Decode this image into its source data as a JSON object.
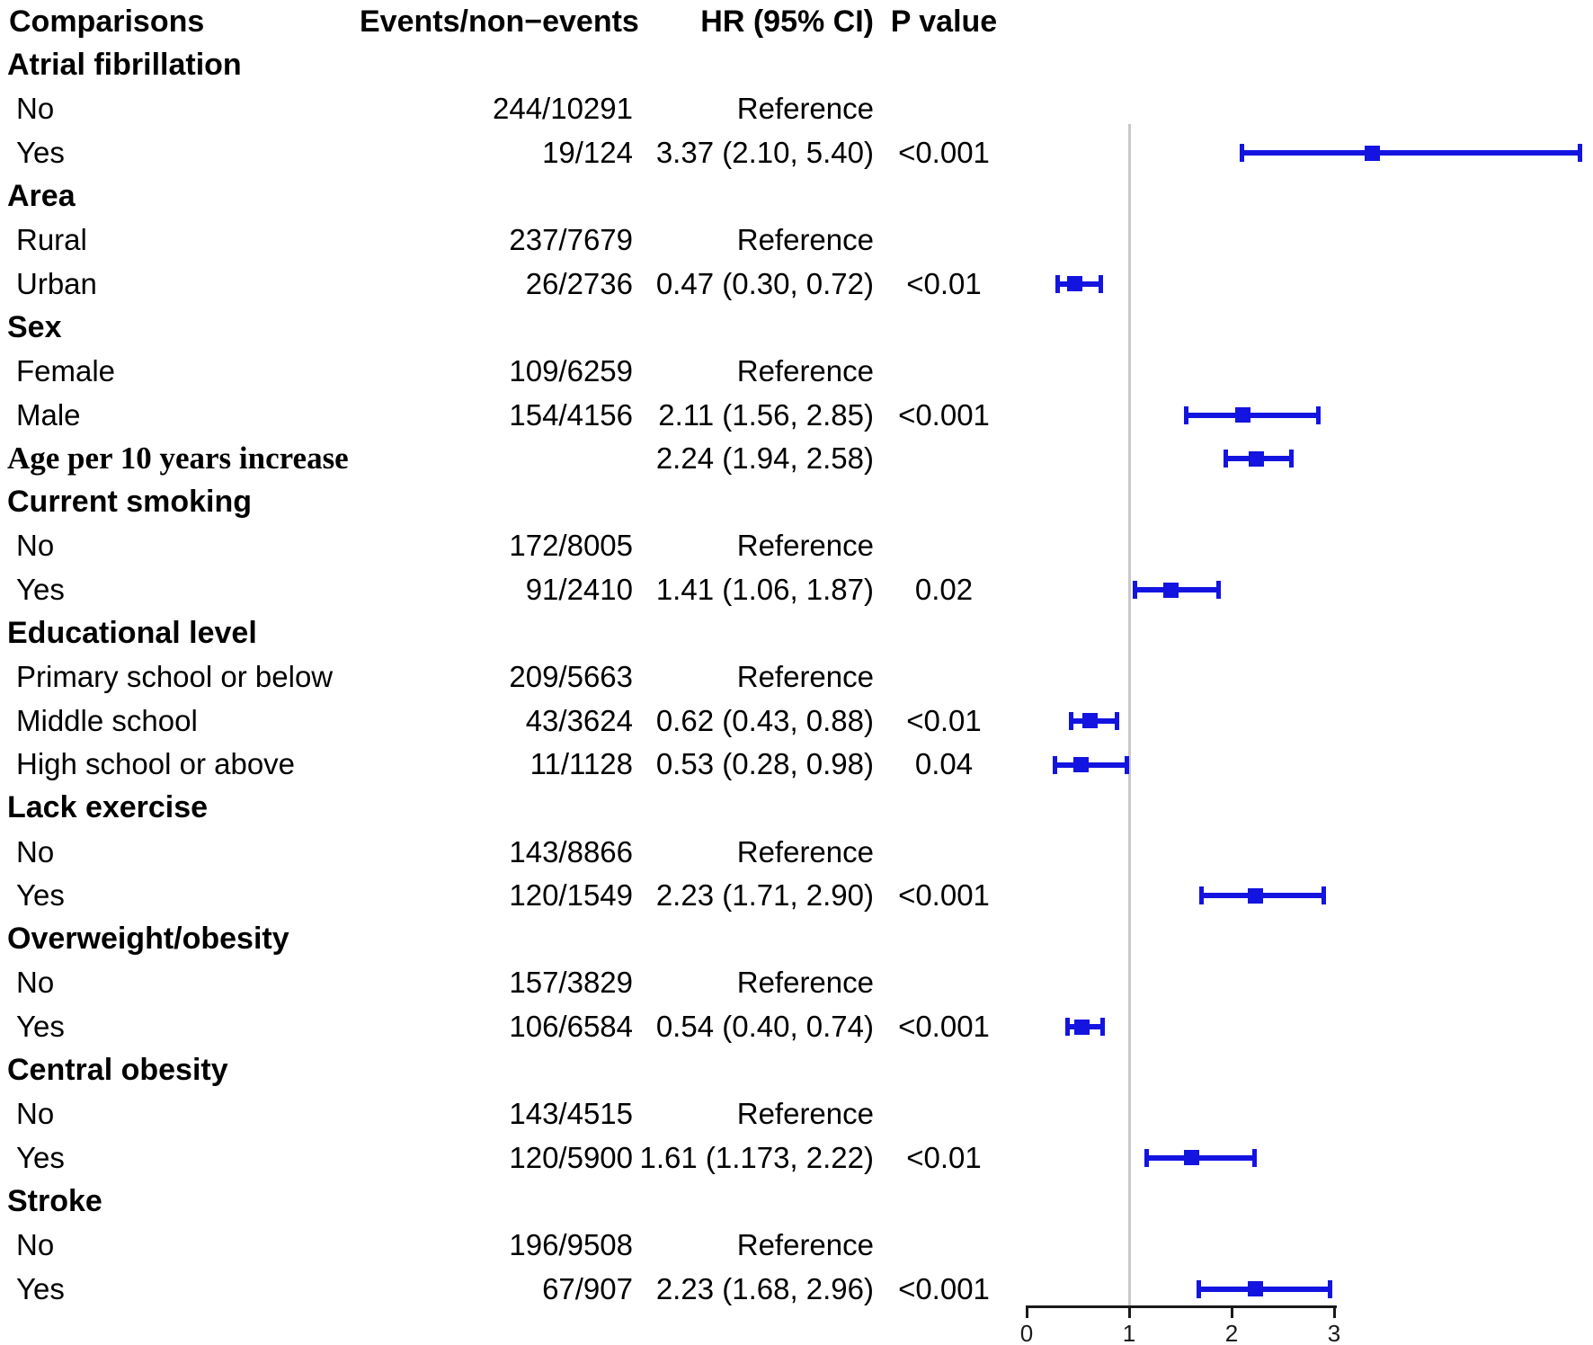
{
  "header": {
    "comparisons": "Comparisons",
    "events": "Events/non−events",
    "hr": "HR (95% CI)",
    "pvalue": "P value"
  },
  "rows": [
    {
      "kind": "group",
      "label": "Atrial fibrillation",
      "events": "",
      "hr": "",
      "p": ""
    },
    {
      "kind": "item",
      "label": "No",
      "events": "244/10291",
      "hr": "Reference",
      "p": ""
    },
    {
      "kind": "item",
      "label": "Yes",
      "events": "19/124",
      "hr": "3.37 (2.10, 5.40)",
      "p": "<0.001",
      "est": 3.37,
      "lo": 2.1,
      "hi": 5.4
    },
    {
      "kind": "group",
      "label": "Area",
      "events": "",
      "hr": "",
      "p": ""
    },
    {
      "kind": "item",
      "label": "Rural",
      "events": "237/7679",
      "hr": "Reference",
      "p": ""
    },
    {
      "kind": "item",
      "label": "Urban",
      "events": "26/2736",
      "hr": "0.47 (0.30, 0.72)",
      "p": "<0.01",
      "est": 0.47,
      "lo": 0.3,
      "hi": 0.72
    },
    {
      "kind": "group",
      "label": "Sex",
      "events": "",
      "hr": "",
      "p": ""
    },
    {
      "kind": "item",
      "label": "Female",
      "events": "109/6259",
      "hr": "Reference",
      "p": ""
    },
    {
      "kind": "item",
      "label": "Male",
      "events": "154/4156",
      "hr": "2.11 (1.56, 2.85)",
      "p": "<0.001",
      "est": 2.11,
      "lo": 1.56,
      "hi": 2.85
    },
    {
      "kind": "serif",
      "label": "Age per 10 years increase",
      "events": "",
      "hr": "2.24 (1.94, 2.58)",
      "p": "",
      "est": 2.24,
      "lo": 1.94,
      "hi": 2.58
    },
    {
      "kind": "group",
      "label": "Current smoking",
      "events": "",
      "hr": "",
      "p": ""
    },
    {
      "kind": "item",
      "label": "No",
      "events": "172/8005",
      "hr": "Reference",
      "p": ""
    },
    {
      "kind": "item",
      "label": "Yes",
      "events": "91/2410",
      "hr": "1.41 (1.06, 1.87)",
      "p": "0.02",
      "est": 1.41,
      "lo": 1.06,
      "hi": 1.87
    },
    {
      "kind": "group",
      "label": "Educational level",
      "events": "",
      "hr": "",
      "p": ""
    },
    {
      "kind": "item",
      "label": "Primary school or below",
      "events": "209/5663",
      "hr": "Reference",
      "p": ""
    },
    {
      "kind": "item",
      "label": "Middle school",
      "events": "43/3624",
      "hr": "0.62 (0.43, 0.88)",
      "p": "<0.01",
      "est": 0.62,
      "lo": 0.43,
      "hi": 0.88
    },
    {
      "kind": "item",
      "label": "High school or above",
      "events": "11/1128",
      "hr": "0.53 (0.28, 0.98)",
      "p": "0.04",
      "est": 0.53,
      "lo": 0.28,
      "hi": 0.98
    },
    {
      "kind": "group",
      "label": "Lack exercise",
      "events": "",
      "hr": "",
      "p": ""
    },
    {
      "kind": "item",
      "label": "No",
      "events": "143/8866",
      "hr": "Reference",
      "p": ""
    },
    {
      "kind": "item",
      "label": "Yes",
      "events": "120/1549",
      "hr": "2.23 (1.71, 2.90)",
      "p": "<0.001",
      "est": 2.23,
      "lo": 1.71,
      "hi": 2.9
    },
    {
      "kind": "group",
      "label": "Overweight/obesity",
      "events": "",
      "hr": "",
      "p": ""
    },
    {
      "kind": "item",
      "label": "No",
      "events": "157/3829",
      "hr": "Reference",
      "p": ""
    },
    {
      "kind": "item",
      "label": "Yes",
      "events": "106/6584",
      "hr": "0.54 (0.40, 0.74)",
      "p": "<0.001",
      "est": 0.54,
      "lo": 0.4,
      "hi": 0.74
    },
    {
      "kind": "group",
      "label": "Central obesity",
      "events": "",
      "hr": "",
      "p": ""
    },
    {
      "kind": "item",
      "label": "No",
      "events": "143/4515",
      "hr": "Reference",
      "p": ""
    },
    {
      "kind": "item",
      "label": "Yes",
      "events": "120/5900",
      "hr": "1.61 (1.173, 2.22)",
      "p": "<0.01",
      "est": 1.61,
      "lo": 1.173,
      "hi": 2.22
    },
    {
      "kind": "group",
      "label": "Stroke",
      "events": "",
      "hr": "",
      "p": ""
    },
    {
      "kind": "item",
      "label": "No",
      "events": "196/9508",
      "hr": "Reference",
      "p": ""
    },
    {
      "kind": "item",
      "label": "Yes",
      "events": "67/907",
      "hr": "2.23 (1.68, 2.96)",
      "p": "<0.001",
      "est": 2.23,
      "lo": 1.68,
      "hi": 2.96
    }
  ],
  "axis": {
    "ticks": [
      "0",
      "1",
      "2",
      "3"
    ],
    "tick_values": [
      0,
      1,
      2,
      3
    ],
    "reference_line": 1
  },
  "colors": {
    "bar": "#1414e0",
    "refline": "#c8c8c8",
    "axis": "#1a1a1a"
  },
  "chart_data": {
    "type": "scatter",
    "subtype": "forest-plot",
    "title": "",
    "xlabel": "HR (95% CI)",
    "xlim": [
      0,
      3.05
    ],
    "x_ticks": [
      0,
      1,
      2,
      3
    ],
    "reference_line": 1,
    "grid": false,
    "legend_position": "none",
    "columns": [
      "Comparisons",
      "Events/non−events",
      "HR (95% CI)",
      "P value"
    ],
    "points": [
      {
        "comparison": "Atrial fibrillation: Yes vs No",
        "events": "19/124",
        "hr": 3.37,
        "ci": [
          2.1,
          5.4
        ],
        "p": "<0.001"
      },
      {
        "comparison": "Area: Urban vs Rural",
        "events": "26/2736",
        "hr": 0.47,
        "ci": [
          0.3,
          0.72
        ],
        "p": "<0.01"
      },
      {
        "comparison": "Sex: Male vs Female",
        "events": "154/4156",
        "hr": 2.11,
        "ci": [
          1.56,
          2.85
        ],
        "p": "<0.001"
      },
      {
        "comparison": "Age per 10 years increase",
        "events": "",
        "hr": 2.24,
        "ci": [
          1.94,
          2.58
        ],
        "p": ""
      },
      {
        "comparison": "Current smoking: Yes vs No",
        "events": "91/2410",
        "hr": 1.41,
        "ci": [
          1.06,
          1.87
        ],
        "p": "0.02"
      },
      {
        "comparison": "Educational level: Middle school",
        "events": "43/3624",
        "hr": 0.62,
        "ci": [
          0.43,
          0.88
        ],
        "p": "<0.01"
      },
      {
        "comparison": "Educational level: High school or above",
        "events": "11/1128",
        "hr": 0.53,
        "ci": [
          0.28,
          0.98
        ],
        "p": "0.04"
      },
      {
        "comparison": "Lack exercise: Yes vs No",
        "events": "120/1549",
        "hr": 2.23,
        "ci": [
          1.71,
          2.9
        ],
        "p": "<0.001"
      },
      {
        "comparison": "Overweight/obesity: Yes vs No",
        "events": "106/6584",
        "hr": 0.54,
        "ci": [
          0.4,
          0.74
        ],
        "p": "<0.001"
      },
      {
        "comparison": "Central obesity: Yes vs No",
        "events": "120/5900",
        "hr": 1.61,
        "ci": [
          1.173,
          2.22
        ],
        "p": "<0.01"
      },
      {
        "comparison": "Stroke: Yes vs No",
        "events": "67/907",
        "hr": 2.23,
        "ci": [
          1.68,
          2.96
        ],
        "p": "<0.001"
      }
    ]
  }
}
